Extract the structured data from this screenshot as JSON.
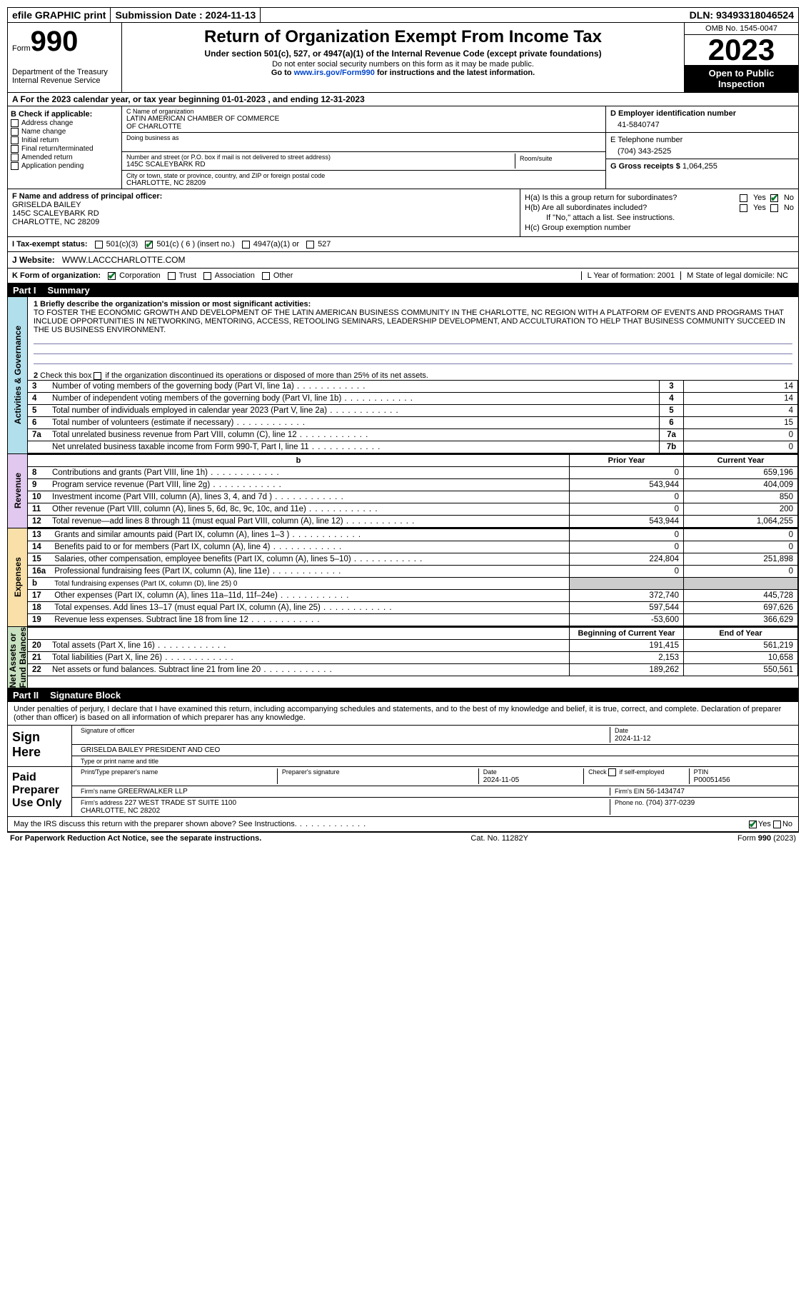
{
  "topbar": {
    "efile": "efile GRAPHIC print",
    "sub_label": "Submission Date : ",
    "sub_date": "2024-11-13",
    "dln_label": "DLN: ",
    "dln": "93493318046524"
  },
  "hdr": {
    "form": "Form",
    "num": "990",
    "dept": "Department of the Treasury\nInternal Revenue Service",
    "title": "Return of Organization Exempt From Income Tax",
    "sub1": "Under section 501(c), 527, or 4947(a)(1) of the Internal Revenue Code (except private foundations)",
    "sub2": "Do not enter social security numbers on this form as it may be made public.",
    "sub3": "Go to www.irs.gov/Form990 for instructions and the latest information.",
    "omb": "OMB No. 1545-0047",
    "year": "2023",
    "opi": "Open to Public\nInspection"
  },
  "lineA": "A  For the 2023 calendar year, or tax year beginning 01-01-2023   , and ending 12-31-2023",
  "B": {
    "label": "B Check if applicable:",
    "opts": [
      "Address change",
      "Name change",
      "Initial return",
      "Final return/terminated",
      "Amended return",
      "Application pending"
    ]
  },
  "C": {
    "name_lbl": "C Name of organization",
    "name": "LATIN AMERICAN CHAMBER OF COMMERCE\nOF CHARLOTTE",
    "dba_lbl": "Doing business as",
    "addr_lbl": "Number and street (or P.O. box if mail is not delivered to street address)",
    "room_lbl": "Room/suite",
    "addr": "145C SCALEYBARK RD",
    "city_lbl": "City or town, state or province, country, and ZIP or foreign postal code",
    "city": "CHARLOTTE, NC  28209"
  },
  "D": {
    "lbl": "D Employer identification number",
    "val": "41-5840747"
  },
  "E": {
    "lbl": "E Telephone number",
    "val": "(704) 343-2525"
  },
  "G": {
    "lbl": "G Gross receipts $ ",
    "val": "1,064,255"
  },
  "F": {
    "lbl": "F  Name and address of principal officer:",
    "val": "GRISELDA BAILEY\n145C SCALEYBARK RD\nCHARLOTTE, NC  28209"
  },
  "H": {
    "a": "H(a)  Is this a group return for subordinates?",
    "a_no": true,
    "b": "H(b)  Are all subordinates included?",
    "bnote": "If \"No,\" attach a list. See instructions.",
    "c": "H(c)  Group exemption number"
  },
  "I": {
    "lbl": "I   Tax-exempt status:",
    "o1": "501(c)(3)",
    "o2": "501(c) ( 6 ) (insert no.)",
    "o3": "4947(a)(1) or",
    "o4": "527"
  },
  "J": {
    "lbl": "J   Website:",
    "val": "WWW.LACCCHARLOTTE.COM"
  },
  "K": {
    "lbl": "K Form of organization:",
    "o1": "Corporation",
    "o2": "Trust",
    "o3": "Association",
    "o4": "Other",
    "L": "L Year of formation: 2001",
    "M": "M State of legal domicile: NC"
  },
  "part1": {
    "pn": "Part I",
    "title": "Summary"
  },
  "sec1": {
    "tab": "Activities & Governance",
    "q1lbl": "1   Briefly describe the organization's mission or most significant activities:",
    "q1": "TO FOSTER THE ECONOMIC GROWTH AND DEVELOPMENT OF THE LATIN AMERICAN BUSINESS COMMUNITY IN THE CHARLOTTE, NC REGION WITH A PLATFORM OF EVENTS AND PROGRAMS THAT INCLUDE OPPORTUNITIES IN NETWORKING, MENTORING, ACCESS, RETOOLING SEMINARS, LEADERSHIP DEVELOPMENT, AND ACCULTURATION TO HELP THAT BUSINESS COMMUNITY SUCCEED IN THE US BUSINESS ENVIRONMENT.",
    "q2": "2   Check this box       if the organization discontinued its operations or disposed of more than 25% of its net assets.",
    "rows": [
      {
        "n": "3",
        "d": "Number of voting members of the governing body (Part VI, line 1a)",
        "ln": "3",
        "v": "14"
      },
      {
        "n": "4",
        "d": "Number of independent voting members of the governing body (Part VI, line 1b)",
        "ln": "4",
        "v": "14"
      },
      {
        "n": "5",
        "d": "Total number of individuals employed in calendar year 2023 (Part V, line 2a)",
        "ln": "5",
        "v": "4"
      },
      {
        "n": "6",
        "d": "Total number of volunteers (estimate if necessary)",
        "ln": "6",
        "v": "15"
      },
      {
        "n": "7a",
        "d": "Total unrelated business revenue from Part VIII, column (C), line 12",
        "ln": "7a",
        "v": "0"
      },
      {
        "n": "",
        "d": "Net unrelated business taxable income from Form 990-T, Part I, line 11",
        "ln": "7b",
        "v": "0"
      }
    ]
  },
  "sec2": {
    "tab": "Revenue",
    "hdr_prior": "Prior Year",
    "hdr_curr": "Current Year",
    "rows": [
      {
        "n": "8",
        "d": "Contributions and grants (Part VIII, line 1h)",
        "p": "0",
        "c": "659,196"
      },
      {
        "n": "9",
        "d": "Program service revenue (Part VIII, line 2g)",
        "p": "543,944",
        "c": "404,009"
      },
      {
        "n": "10",
        "d": "Investment income (Part VIII, column (A), lines 3, 4, and 7d )",
        "p": "0",
        "c": "850"
      },
      {
        "n": "11",
        "d": "Other revenue (Part VIII, column (A), lines 5, 6d, 8c, 9c, 10c, and 11e)",
        "p": "0",
        "c": "200"
      },
      {
        "n": "12",
        "d": "Total revenue—add lines 8 through 11 (must equal Part VIII, column (A), line 12)",
        "p": "543,944",
        "c": "1,064,255"
      }
    ]
  },
  "sec3": {
    "tab": "Expenses",
    "rows": [
      {
        "n": "13",
        "d": "Grants and similar amounts paid (Part IX, column (A), lines 1–3 )",
        "p": "0",
        "c": "0"
      },
      {
        "n": "14",
        "d": "Benefits paid to or for members (Part IX, column (A), line 4)",
        "p": "0",
        "c": "0"
      },
      {
        "n": "15",
        "d": "Salaries, other compensation, employee benefits (Part IX, column (A), lines 5–10)",
        "p": "224,804",
        "c": "251,898"
      },
      {
        "n": "16a",
        "d": "Professional fundraising fees (Part IX, column (A), line 11e)",
        "p": "0",
        "c": "0"
      },
      {
        "n": "b",
        "d": "Total fundraising expenses (Part IX, column (D), line 25) 0",
        "gray": true
      },
      {
        "n": "17",
        "d": "Other expenses (Part IX, column (A), lines 11a–11d, 11f–24e)",
        "p": "372,740",
        "c": "445,728"
      },
      {
        "n": "18",
        "d": "Total expenses. Add lines 13–17 (must equal Part IX, column (A), line 25)",
        "p": "597,544",
        "c": "697,626"
      },
      {
        "n": "19",
        "d": "Revenue less expenses. Subtract line 18 from line 12",
        "p": "-53,600",
        "c": "366,629"
      }
    ]
  },
  "sec4": {
    "tab": "Net Assets or\nFund Balances",
    "hdr_prior": "Beginning of Current Year",
    "hdr_curr": "End of Year",
    "rows": [
      {
        "n": "20",
        "d": "Total assets (Part X, line 16)",
        "p": "191,415",
        "c": "561,219"
      },
      {
        "n": "21",
        "d": "Total liabilities (Part X, line 26)",
        "p": "2,153",
        "c": "10,658"
      },
      {
        "n": "22",
        "d": "Net assets or fund balances. Subtract line 21 from line 20",
        "p": "189,262",
        "c": "550,561"
      }
    ]
  },
  "part2": {
    "pn": "Part II",
    "title": "Signature Block"
  },
  "sig": {
    "decl": "Under penalties of perjury, I declare that I have examined this return, including accompanying schedules and statements, and to the best of my knowledge and belief, it is true, correct, and complete. Declaration of preparer (other than officer) is based on all information of which preparer has any knowledge.",
    "sh": "Sign Here",
    "sig_off": "Signature of officer",
    "date_lbl": "Date",
    "date1": "2024-11-12",
    "off": "GRISELDA BAILEY PRESIDENT AND CEO",
    "type_lbl": "Type or print name and title",
    "ppu": "Paid Preparer Use Only",
    "prep_lbl": "Print/Type preparer's name",
    "psig_lbl": "Preparer's signature",
    "pdate_lbl": "Date",
    "pdate": "2024-11-05",
    "check_lbl": "Check       if self-employed",
    "ptin_lbl": "PTIN",
    "ptin": "P00051456",
    "firm_lbl": "Firm's name",
    "firm": "GREERWALKER LLP",
    "fein_lbl": "Firm's EIN",
    "fein": "56-1434747",
    "faddr_lbl": "Firm's address",
    "faddr": "227 WEST TRADE ST SUITE 1100\nCHARLOTTE, NC  28202",
    "phone_lbl": "Phone no.",
    "phone": "(704) 377-0239",
    "discuss": "May the IRS discuss this return with the preparer shown above? See Instructions."
  },
  "footer": {
    "pra": "For Paperwork Reduction Act Notice, see the separate instructions.",
    "cat": "Cat. No. 11282Y",
    "form": "Form 990 (2023)"
  }
}
